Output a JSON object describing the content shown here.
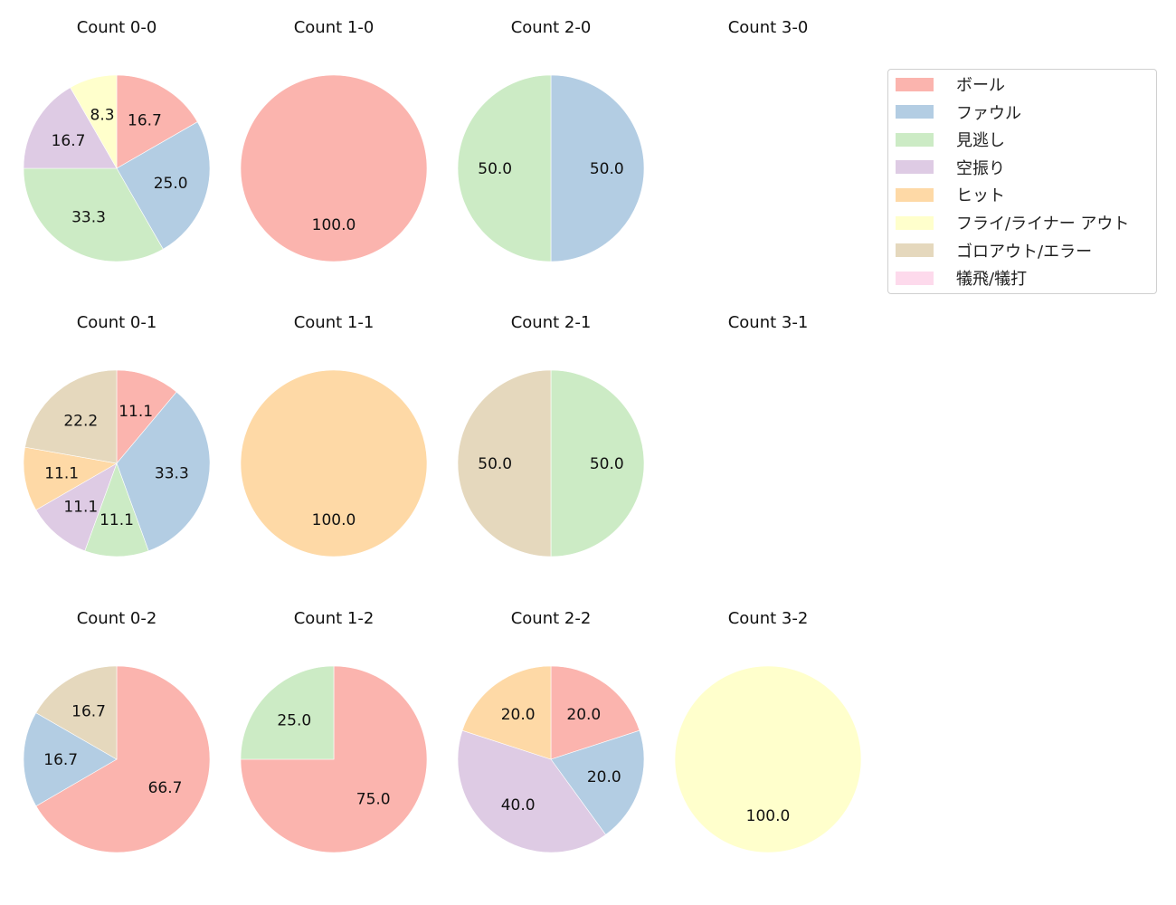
{
  "legend": {
    "items": [
      {
        "label": "ボール",
        "color": "#fbb4ae"
      },
      {
        "label": "ファウル",
        "color": "#b3cde3"
      },
      {
        "label": "見逃し",
        "color": "#ccebc5"
      },
      {
        "label": "空振り",
        "color": "#decbe4"
      },
      {
        "label": "ヒット",
        "color": "#fed9a6"
      },
      {
        "label": "フライ/ライナー アウト",
        "color": "#ffffcc"
      },
      {
        "label": "ゴロアウト/エラー",
        "color": "#e5d8bd"
      },
      {
        "label": "犠飛/犠打",
        "color": "#fddaec"
      }
    ]
  },
  "chart_data": [
    {
      "type": "pie",
      "title": "Count 0-0",
      "labels": [
        "ボール",
        "ファウル",
        "見逃し",
        "空振り",
        "フライ/ライナー アウト"
      ],
      "values": [
        16.7,
        25.0,
        33.3,
        16.7,
        8.3
      ]
    },
    {
      "type": "pie",
      "title": "Count 1-0",
      "labels": [
        "ボール"
      ],
      "values": [
        100.0
      ]
    },
    {
      "type": "pie",
      "title": "Count 2-0",
      "labels": [
        "ファウル",
        "見逃し"
      ],
      "values": [
        50.0,
        50.0
      ]
    },
    {
      "type": "pie",
      "title": "Count 3-0",
      "labels": [],
      "values": []
    },
    {
      "type": "pie",
      "title": "Count 0-1",
      "labels": [
        "ボール",
        "ファウル",
        "見逃し",
        "空振り",
        "ヒット",
        "ゴロアウト/エラー"
      ],
      "values": [
        11.1,
        33.3,
        11.1,
        11.1,
        11.1,
        22.2
      ]
    },
    {
      "type": "pie",
      "title": "Count 1-1",
      "labels": [
        "ヒット"
      ],
      "values": [
        100.0
      ]
    },
    {
      "type": "pie",
      "title": "Count 2-1",
      "labels": [
        "見逃し",
        "ゴロアウト/エラー"
      ],
      "values": [
        50.0,
        50.0
      ]
    },
    {
      "type": "pie",
      "title": "Count 3-1",
      "labels": [],
      "values": []
    },
    {
      "type": "pie",
      "title": "Count 0-2",
      "labels": [
        "ボール",
        "ファウル",
        "ゴロアウト/エラー"
      ],
      "values": [
        66.7,
        16.7,
        16.7
      ]
    },
    {
      "type": "pie",
      "title": "Count 1-2",
      "labels": [
        "ボール",
        "見逃し"
      ],
      "values": [
        75.0,
        25.0
      ]
    },
    {
      "type": "pie",
      "title": "Count 2-2",
      "labels": [
        "ボール",
        "ファウル",
        "空振り",
        "ヒット"
      ],
      "values": [
        20.0,
        20.0,
        40.0,
        20.0
      ]
    },
    {
      "type": "pie",
      "title": "Count 3-2",
      "labels": [
        "フライ/ライナー アウト"
      ],
      "values": [
        100.0
      ]
    }
  ]
}
